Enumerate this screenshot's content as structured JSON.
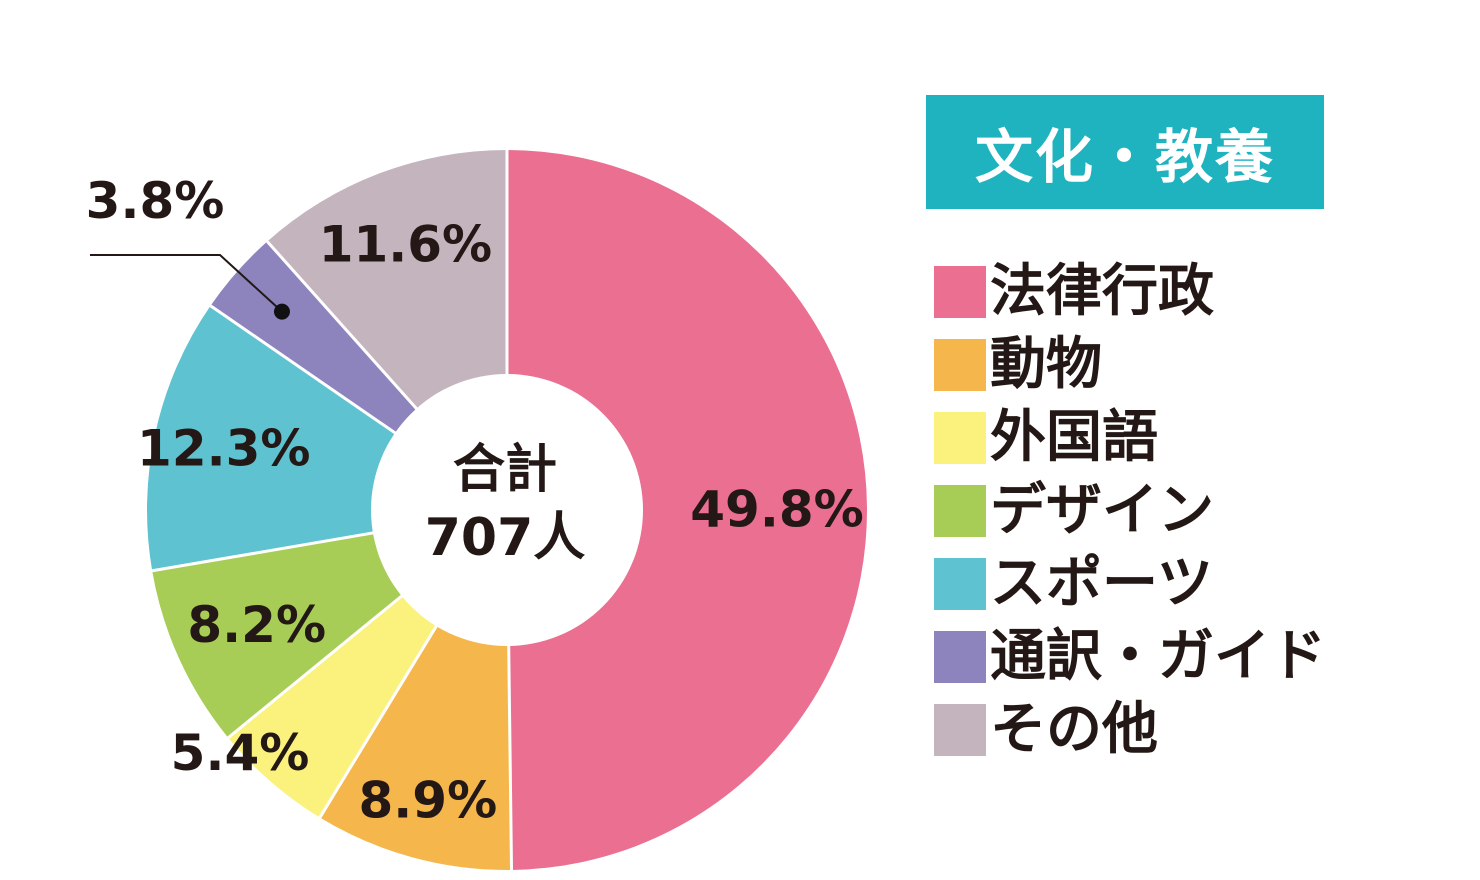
{
  "title": "文化・教養",
  "center": {
    "line1": "合計",
    "line2": "707人"
  },
  "chart_data": {
    "type": "pie",
    "title": "文化・教養",
    "total_label": "合計 707人",
    "legend_position": "right",
    "categories": [
      "法律行政",
      "動物",
      "外国語",
      "デザイン",
      "スポーツ",
      "通訳・ガイド",
      "その他"
    ],
    "values": [
      49.8,
      8.9,
      5.4,
      8.2,
      12.3,
      3.8,
      11.6
    ],
    "labels": [
      "49.8%",
      "8.9%",
      "5.4%",
      "8.2%",
      "12.3%",
      "3.8%",
      "11.6%"
    ],
    "colors": [
      "#ea6f91",
      "#f5b74b",
      "#fbf27d",
      "#a8cd56",
      "#5ec2d1",
      "#8d83bd",
      "#c4b4bd"
    ]
  },
  "legend": [
    {
      "label": "法律行政",
      "color": "#ea6f91"
    },
    {
      "label": "動物",
      "color": "#f5b74b"
    },
    {
      "label": "外国語",
      "color": "#fbf27d"
    },
    {
      "label": "デザイン",
      "color": "#a8cd56"
    },
    {
      "label": "スポーツ",
      "color": "#5ec2d1"
    },
    {
      "label": "通訳・ガイド",
      "color": "#8d83bd"
    },
    {
      "label": "その他",
      "color": "#c4b4bd"
    }
  ]
}
